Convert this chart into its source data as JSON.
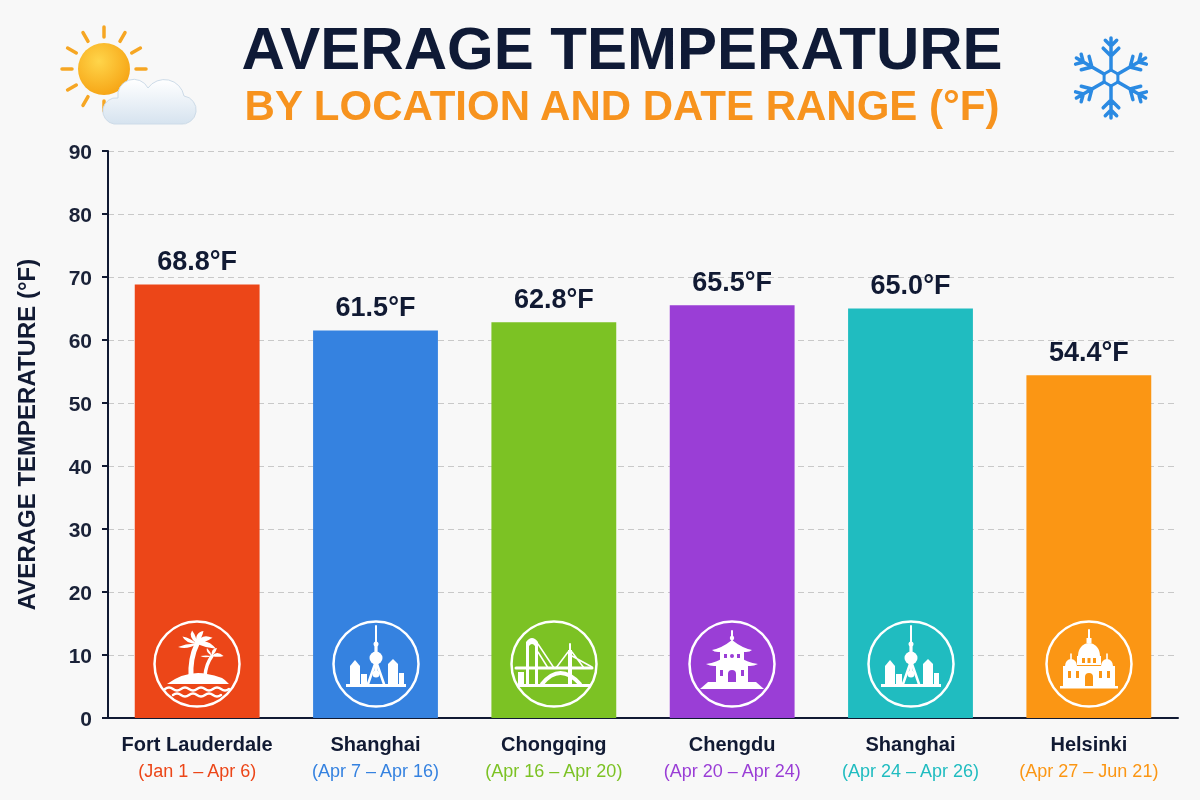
{
  "chart_data": {
    "type": "bar",
    "title": "AVERAGE TEMPERATURE",
    "subtitle": "BY LOCATION AND DATE RANGE (°F)",
    "ylabel": "AVERAGE TEMPERATURE (°F)",
    "categories": [
      "Fort Lauderdale\n(Jan 1 – Apr 6)",
      "Shanghai\n(Apr 7 – Apr 16)",
      "Chongqing\n(Apr 16 – Apr 20)",
      "Chengdu\n(Apr 20 – Apr 24)",
      "Shanghai\n(Apr 24 – Apr 26)",
      "Helsinki\n(Apr 27 – Jun 21)"
    ],
    "values": [
      68.8,
      61.5,
      62.8,
      65.5,
      65.0,
      54.4
    ],
    "colors": [
      "#ec4618",
      "#3582e0",
      "#7cc224",
      "#9a3ed6",
      "#20bcc0",
      "#fb9614"
    ],
    "value_labels": [
      "68.8°F",
      "61.5°F",
      "62.8°F",
      "65.5°F",
      "65.0°F",
      "54.4°F"
    ],
    "ylim": [
      0,
      90
    ],
    "yticks": [
      0,
      10,
      20,
      30,
      40,
      50,
      60,
      70,
      80,
      90
    ],
    "grid": "y"
  }
}
